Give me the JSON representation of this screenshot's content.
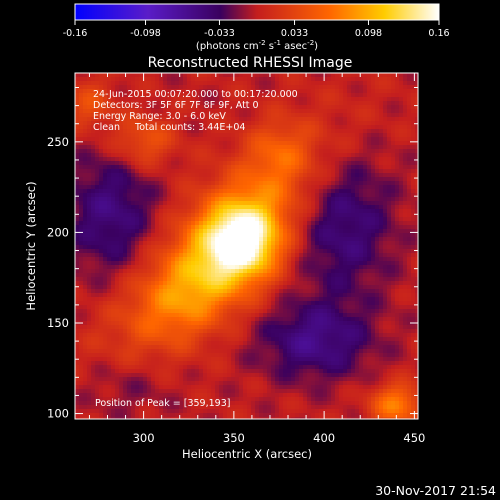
{
  "chart_data": {
    "type": "heatmap",
    "title": "Reconstructed RHESSI Image",
    "xlabel": "Heliocentric X (arcsec)",
    "ylabel": "Heliocentric Y (arcsec)",
    "xlim": [
      262,
      452
    ],
    "ylim": [
      97,
      288
    ],
    "x_ticks": [
      "300",
      "350",
      "400",
      "450"
    ],
    "x_tick_values": [
      300,
      350,
      400,
      450
    ],
    "y_ticks": [
      "100",
      "150",
      "200",
      "250"
    ],
    "y_tick_values": [
      100,
      150,
      200,
      250
    ],
    "colorbar": {
      "ticks": [
        "-0.16",
        "-0.098",
        "-0.033",
        "0.033",
        "0.098",
        "0.16"
      ],
      "tick_values": [
        -0.16,
        -0.098,
        -0.033,
        0.033,
        0.098,
        0.16
      ],
      "range": [
        -0.16,
        0.16
      ],
      "unit_parts": [
        "(photons cm",
        "-2",
        " s",
        "-1",
        " asec",
        "-2",
        ")"
      ],
      "colors": [
        "#0000ff",
        "#5a1cc8",
        "#3a005e",
        "#c41e1e",
        "#ff6600",
        "#ffcc00",
        "#ffffff"
      ]
    },
    "annotations": [
      "24-Jun-2015 00:07:20.000 to 00:17:20.000",
      "Detectors: 3F 5F 6F 7F 8F 9F, Att 0",
      "Energy Range: 3.0 - 6.0 keV",
      "Clean     Total counts: 3.44E+04"
    ],
    "peak_label": "Position of Peak = [359,193]",
    "peak": [
      359,
      193
    ],
    "sources": [
      {
        "x": 355,
        "y": 195,
        "sx": 14,
        "sy": 14,
        "amp": 0.12,
        "rot": 45
      },
      {
        "x": 345,
        "y": 195,
        "sx": 48,
        "sy": 18,
        "amp": 0.085,
        "rot": 45
      },
      {
        "x": 300,
        "y": 250,
        "sx": 12,
        "sy": 10,
        "amp": 0.05,
        "rot": 0
      },
      {
        "x": 330,
        "y": 165,
        "sx": 25,
        "sy": 15,
        "amp": 0.04,
        "rot": 30
      },
      {
        "x": 375,
        "y": 245,
        "sx": 12,
        "sy": 12,
        "amp": 0.035,
        "rot": 0
      },
      {
        "x": 440,
        "y": 105,
        "sx": 10,
        "sy": 8,
        "amp": 0.075,
        "rot": 0
      },
      {
        "x": 270,
        "y": 270,
        "sx": 10,
        "sy": 10,
        "amp": 0.04,
        "rot": 0
      },
      {
        "x": 282,
        "y": 210,
        "sx": 18,
        "sy": 25,
        "amp": -0.05,
        "rot": 0
      },
      {
        "x": 410,
        "y": 205,
        "sx": 20,
        "sy": 28,
        "amp": -0.05,
        "rot": 0
      },
      {
        "x": 395,
        "y": 140,
        "sx": 22,
        "sy": 15,
        "amp": -0.055,
        "rot": 0
      },
      {
        "x": 290,
        "y": 115,
        "sx": 18,
        "sy": 12,
        "amp": -0.02,
        "rot": 0
      }
    ]
  },
  "footer": {
    "timestamp": "30-Nov-2017 21:54"
  }
}
